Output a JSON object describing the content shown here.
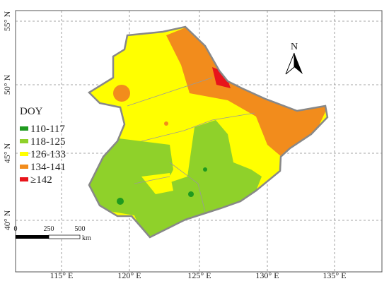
{
  "map": {
    "lat_labels": [
      "55° N",
      "50° N",
      "45° N",
      "40° N"
    ],
    "lon_labels": [
      "115° E",
      "120° E",
      "125° E",
      "130° E",
      "135° E"
    ],
    "legend": {
      "title": "DOY",
      "items": [
        {
          "label": "110-117",
          "color": "#1f9a1f"
        },
        {
          "label": "118-125",
          "color": "#8fd12a"
        },
        {
          "label": "126-133",
          "color": "#ffff00"
        },
        {
          "label": "134-141",
          "color": "#f28c1c"
        },
        {
          "label": "≥142",
          "color": "#e8141b"
        }
      ]
    },
    "north": "N",
    "scale": {
      "labels": [
        "0",
        "250",
        "500"
      ],
      "unit": "km"
    }
  }
}
